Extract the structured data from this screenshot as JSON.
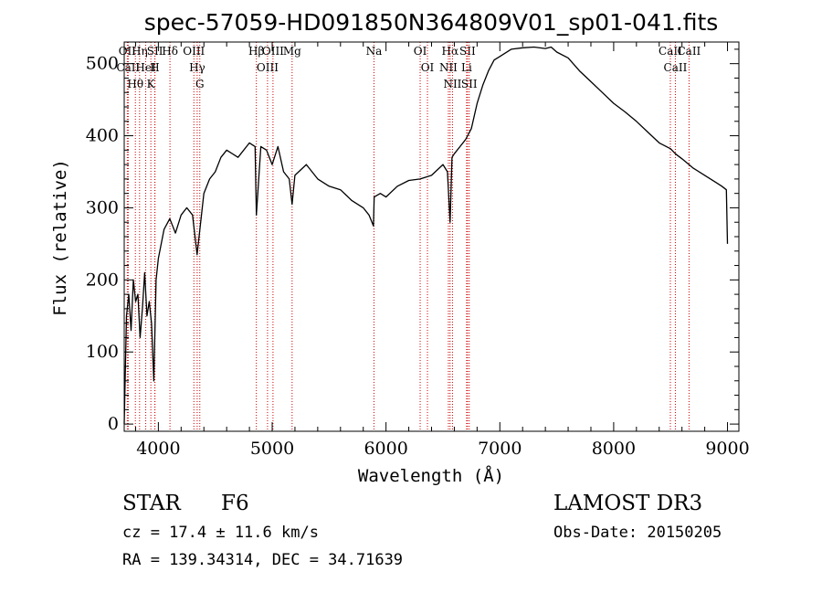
{
  "chart_data": {
    "type": "line",
    "title": "spec-57059-HD091850N364809V01_sp01-041.fits",
    "xlabel": "Wavelength (Å)",
    "ylabel": "Flux (relative)",
    "xlim": [
      3700,
      9100
    ],
    "ylim": [
      -10,
      530
    ],
    "xticks": [
      4000,
      5000,
      6000,
      7000,
      8000,
      9000
    ],
    "yticks": [
      0,
      100,
      200,
      300,
      400,
      500
    ],
    "series": [
      {
        "color": "#000000",
        "x": [
          3700,
          3720,
          3740,
          3760,
          3780,
          3800,
          3820,
          3840,
          3860,
          3880,
          3900,
          3920,
          3940,
          3960,
          3980,
          4000,
          4050,
          4100,
          4150,
          4200,
          4250,
          4300,
          4340,
          4400,
          4450,
          4500,
          4550,
          4600,
          4700,
          4800,
          4850,
          4861,
          4900,
          4950,
          5000,
          5050,
          5100,
          5150,
          5175,
          5200,
          5300,
          5400,
          5500,
          5600,
          5700,
          5800,
          5850,
          5890,
          5896,
          5950,
          6000,
          6100,
          6200,
          6300,
          6400,
          6500,
          6540,
          6563,
          6580,
          6600,
          6650,
          6700,
          6750,
          6800,
          6850,
          6900,
          6950,
          7000,
          7100,
          7200,
          7300,
          7400,
          7450,
          7500,
          7600,
          7700,
          7800,
          7900,
          8000,
          8100,
          8200,
          8300,
          8400,
          8500,
          8542,
          8600,
          8662,
          8700,
          8800,
          8900,
          8950,
          8990,
          9000
        ],
        "y": [
          0,
          150,
          180,
          130,
          200,
          170,
          180,
          120,
          160,
          210,
          150,
          170,
          140,
          60,
          200,
          230,
          270,
          285,
          265,
          290,
          300,
          290,
          235,
          320,
          340,
          350,
          370,
          380,
          370,
          390,
          385,
          290,
          385,
          380,
          360,
          385,
          350,
          340,
          305,
          345,
          360,
          340,
          330,
          325,
          310,
          300,
          290,
          275,
          315,
          320,
          315,
          330,
          338,
          340,
          345,
          360,
          350,
          280,
          370,
          375,
          385,
          395,
          410,
          445,
          470,
          490,
          505,
          510,
          520,
          522,
          523,
          521,
          523,
          516,
          508,
          490,
          475,
          460,
          445,
          433,
          420,
          405,
          390,
          382,
          375,
          368,
          360,
          355,
          345,
          335,
          330,
          325,
          250
        ]
      }
    ],
    "lines": [
      {
        "name": "OII",
        "wl": 3727
      },
      {
        "name": "CaII",
        "wl": 3735
      },
      {
        "name": "Hθ",
        "wl": 3798
      },
      {
        "name": "Hη",
        "wl": 3835
      },
      {
        "name": "HeI",
        "wl": 3889
      },
      {
        "name": "K",
        "wl": 3934
      },
      {
        "name": "SII",
        "wl": 3970
      },
      {
        "name": "H",
        "wl": 3969
      },
      {
        "name": "Hδ",
        "wl": 4102
      },
      {
        "name": "OIII",
        "wl": 4312
      },
      {
        "name": "Hγ",
        "wl": 4341
      },
      {
        "name": "G",
        "wl": 4364
      },
      {
        "name": "Hβ",
        "wl": 4861
      },
      {
        "name": "OIII",
        "wl": 4959
      },
      {
        "name": "OIII",
        "wl": 5007
      },
      {
        "name": "Mg",
        "wl": 5175
      },
      {
        "name": "Na",
        "wl": 5894
      },
      {
        "name": "OI",
        "wl": 6300
      },
      {
        "name": "OI",
        "wl": 6364
      },
      {
        "name": "Hα",
        "wl": 6563
      },
      {
        "name": "NII",
        "wl": 6548
      },
      {
        "name": "NII",
        "wl": 6584
      },
      {
        "name": "SII",
        "wl": 6716
      },
      {
        "name": "Li",
        "wl": 6708
      },
      {
        "name": "SII",
        "wl": 6731
      },
      {
        "name": "CaII",
        "wl": 8498
      },
      {
        "name": "CaII",
        "wl": 8542
      },
      {
        "name": "CaII",
        "wl": 8662
      }
    ],
    "line_color": "#cc0000",
    "grid": false
  },
  "info": {
    "class_label": "STAR",
    "subclass": "F6",
    "survey": "LAMOST DR3",
    "cz": "cz = 17.4 ± 11.6 km/s",
    "obs_date": "Obs-Date: 20150205",
    "coords": "RA = 139.34314, DEC =  34.71639"
  }
}
